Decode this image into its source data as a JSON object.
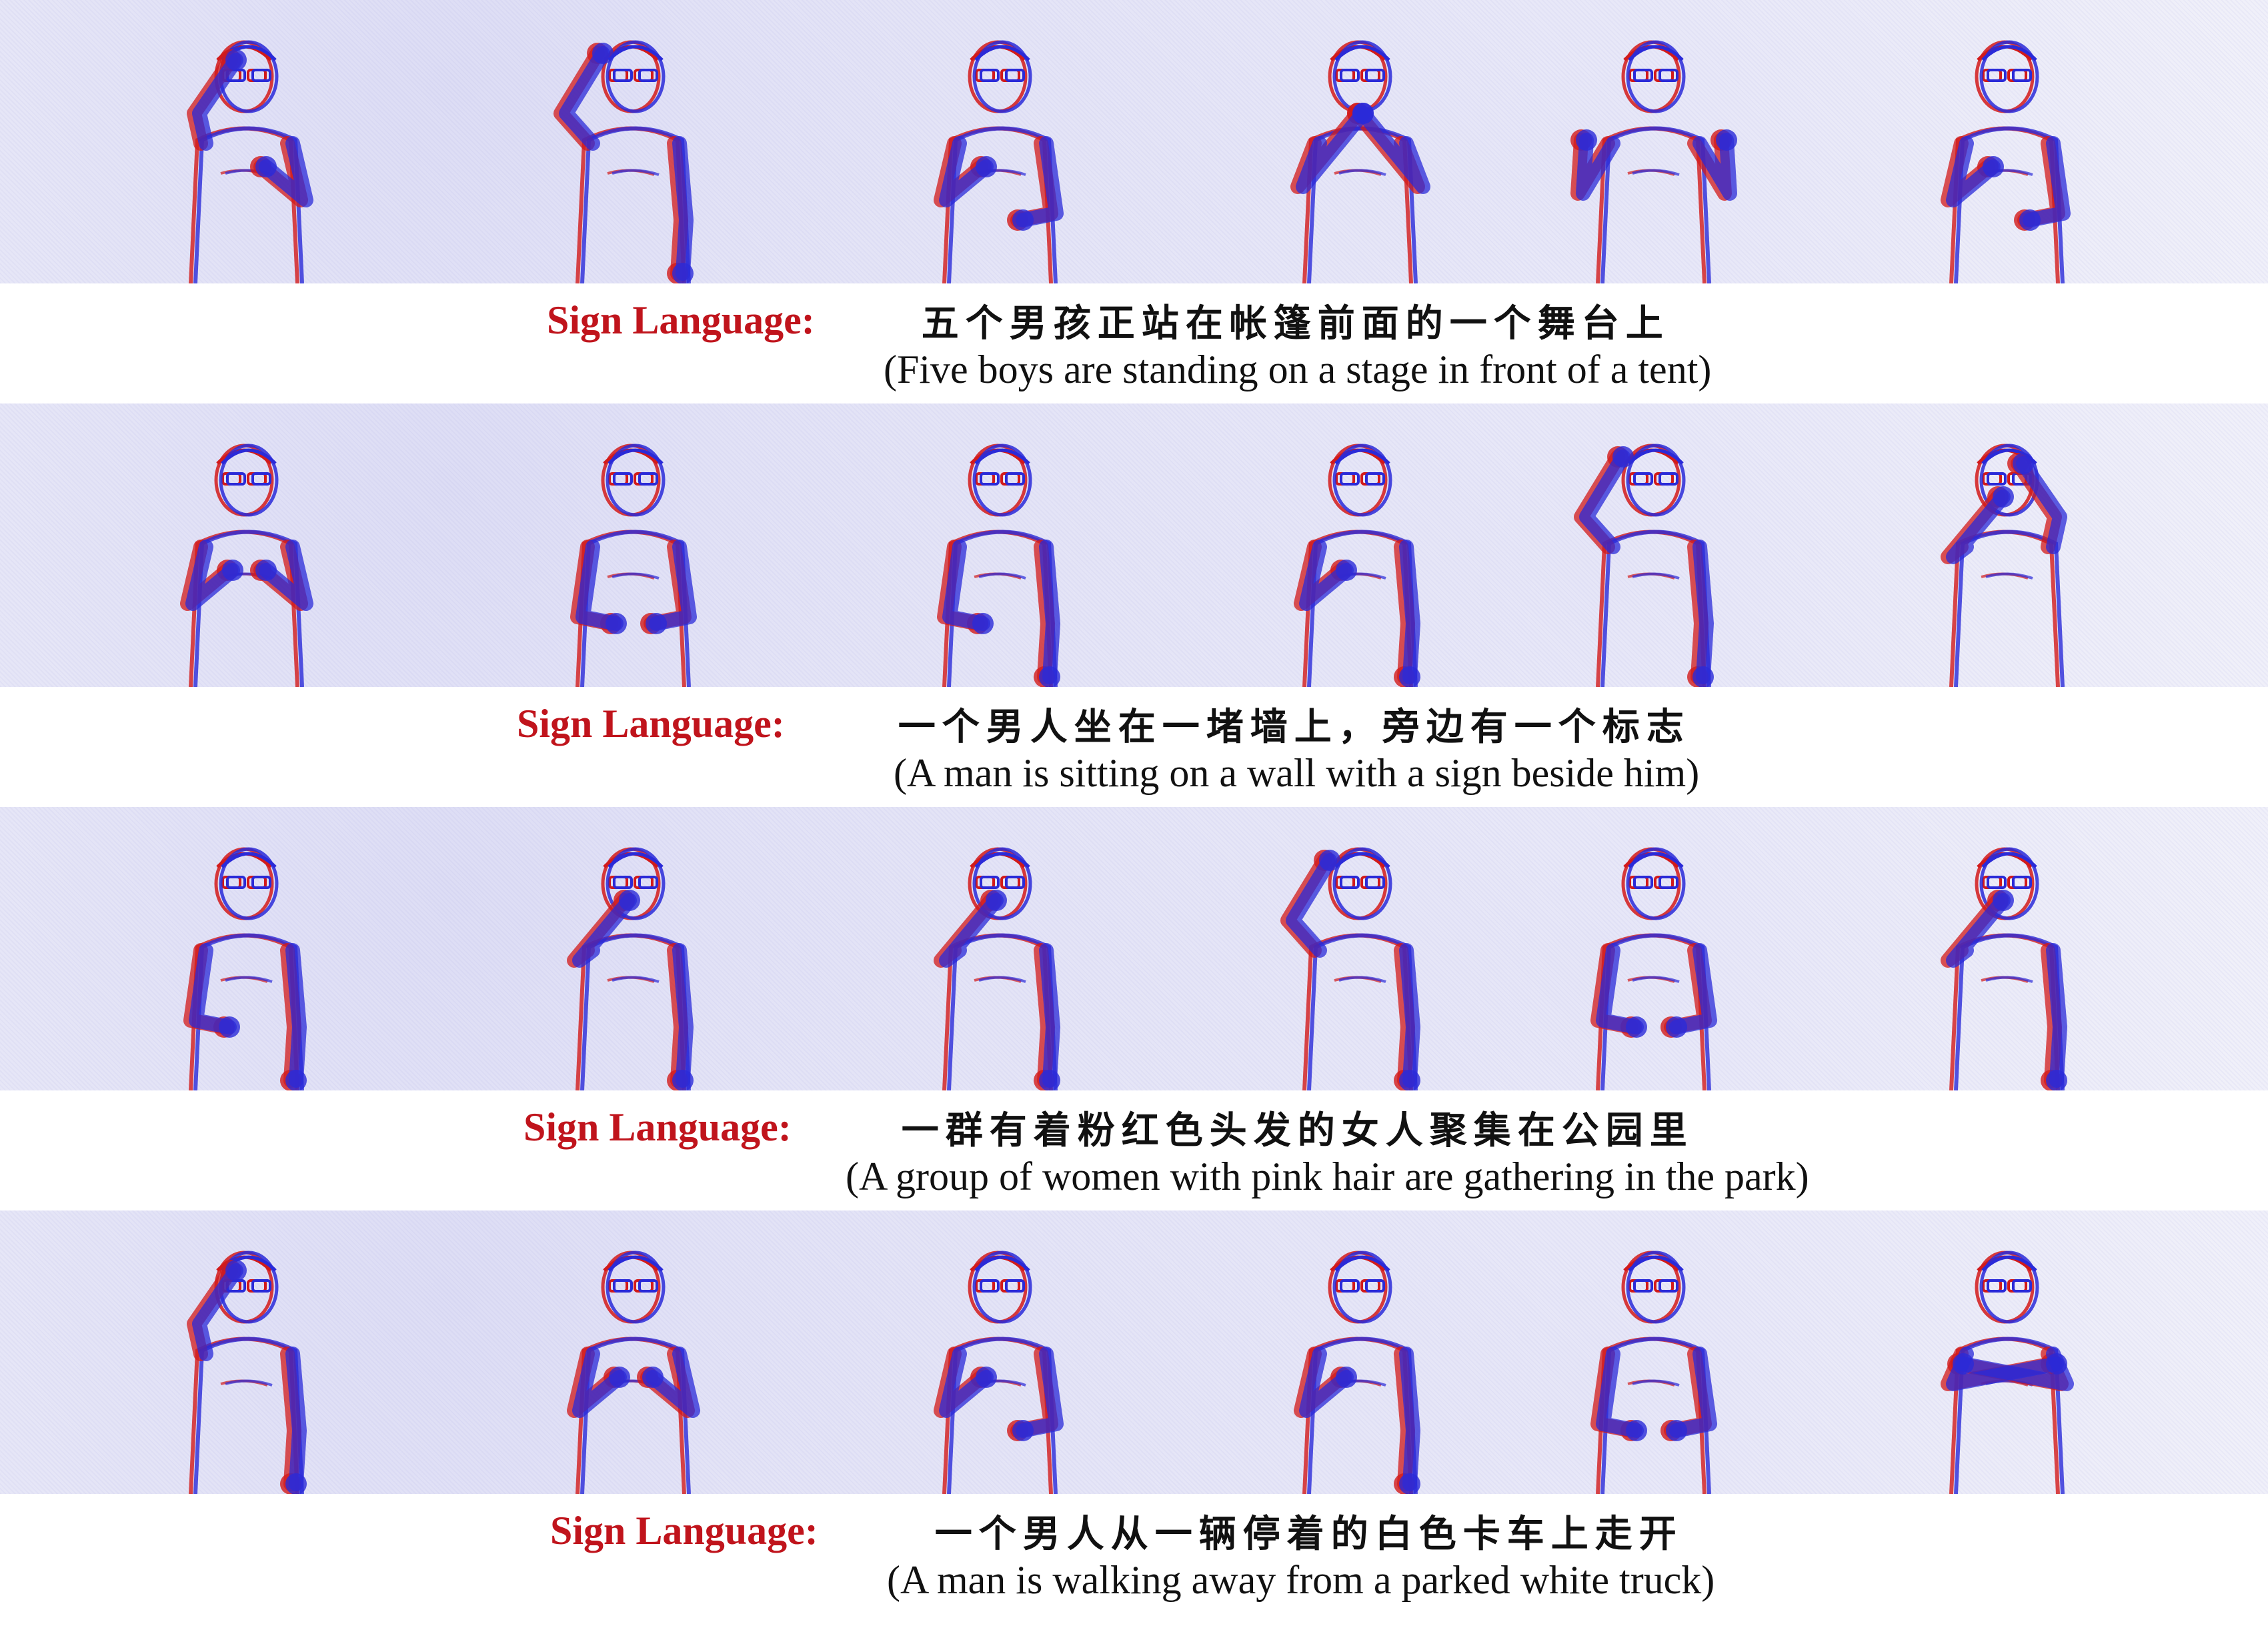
{
  "colors": {
    "label": "#c0141c",
    "text": "#111111",
    "edge_red": "#d21a1a",
    "edge_blue": "#2a2ad8"
  },
  "rows": [
    {
      "label": "Sign Language:",
      "chinese": "五个男孩正站在帐篷前面的一个舞台上",
      "english": "(Five boys are standing on a stage in front of a tent)",
      "frame_count": 6
    },
    {
      "label": "Sign Language:",
      "chinese": "一个男人坐在一堵墙上，旁边有一个标志",
      "english": "(A man is sitting on a wall with a sign beside him)",
      "frame_count": 6
    },
    {
      "label": "Sign Language:",
      "chinese": "一群有着粉红色头发的女人聚集在公园里",
      "english": "(A group of women with pink hair are gathering in the park)",
      "frame_count": 6
    },
    {
      "label": "Sign Language:",
      "chinese": "一个男人从一辆停着的白色卡车上走开",
      "english": "(A man is walking away from a parked white truck)",
      "frame_count": 6
    }
  ]
}
